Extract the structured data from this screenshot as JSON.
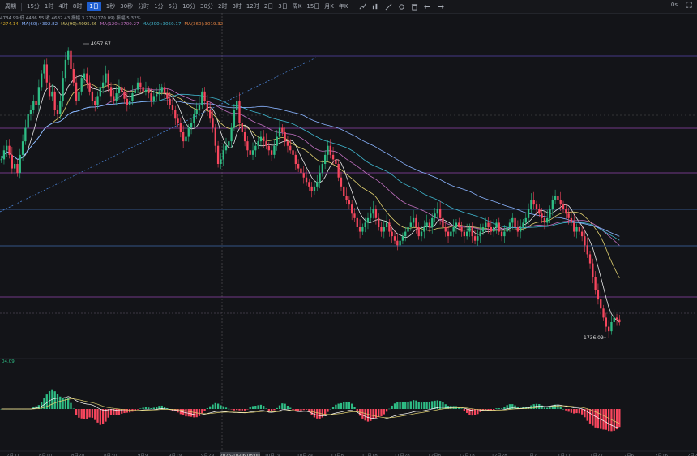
{
  "toolbar": {
    "period_label": "周期",
    "intervals": [
      "15分",
      "1时",
      "4时",
      "8时",
      "1日",
      "1秒",
      "30秒",
      "分时",
      "1分",
      "5分",
      "10分",
      "30分",
      "2时",
      "3时",
      "12时",
      "2日",
      "3日",
      "周K",
      "15日",
      "月K",
      "年K"
    ],
    "active_interval": "1日",
    "right": {
      "timer": "0s"
    }
  },
  "info": {
    "line1": "4734.99  低 4486.55  收 4682.43  振幅 3.77%(170.09)  振幅 5.32%",
    "ma": [
      {
        "label": "4274.14",
        "color": "#c9a227"
      },
      {
        "label": "MA(60):4392.82",
        "color": "#8ab4ff"
      },
      {
        "label": "MA(90):4095.66",
        "color": "#e0d070"
      },
      {
        "label": "MA(120):3700.27",
        "color": "#c070c0"
      },
      {
        "label": "MA(200):3050.17",
        "color": "#40b8d0"
      },
      {
        "label": "MA(360):3019.32",
        "color": "#e08040"
      }
    ]
  },
  "macd": {
    "label": "04.09"
  },
  "annotations": {
    "high": "4957.67",
    "low": "1736.02"
  },
  "colors": {
    "up": "#2ebd85",
    "down": "#f6465d",
    "bg": "#131418"
  },
  "chart_data": {
    "type": "candlestick",
    "ylim": [
      1600,
      5100
    ],
    "dates": [
      "7月31",
      "8月10",
      "8月20",
      "8月30",
      "9月9",
      "9月19",
      "9月29",
      "2025-10-06 08:00",
      "10月19",
      "10月29",
      "11月8",
      "11月18",
      "11月28",
      "12月8",
      "12月18",
      "12月28",
      "1月7",
      "1月17",
      "1月27",
      "2月6",
      "2月16",
      "2月26"
    ],
    "x_ticks": [
      "7月31",
      "8月10",
      "8月20",
      "8月30",
      "9月9",
      "9月19",
      "9月29",
      "2025-10-06 08:00",
      "10月19",
      "10月29",
      "11月8",
      "11月18",
      "11月28",
      "12月8",
      "12月18",
      "12月28",
      "1月7",
      "1月17",
      "1月27",
      "2月6",
      "2月16",
      "2月26"
    ],
    "close_series": [
      3750,
      3850,
      3900,
      3800,
      3650,
      3700,
      3600,
      3800,
      3950,
      4100,
      4250,
      4300,
      4400,
      4350,
      4550,
      4700,
      4800,
      4600,
      4450,
      4500,
      4300,
      4250,
      4400,
      4650,
      4850,
      4950,
      4750,
      4600,
      4400,
      4500,
      4650,
      4700,
      4600,
      4500,
      4400,
      4350,
      4450,
      4550,
      4600,
      4700,
      4550,
      4450,
      4400,
      4480,
      4550,
      4500,
      4420,
      4350,
      4400,
      4480,
      4520,
      4600,
      4550,
      4500,
      4520,
      4480,
      4400,
      4450,
      4470,
      4500,
      4550,
      4480,
      4420,
      4350,
      4300,
      4200,
      4150,
      4050,
      3950,
      4000,
      4100,
      4150,
      4250,
      4300,
      4350,
      4500,
      4400,
      4300,
      4200,
      4100,
      3900,
      3700,
      3750,
      3850,
      3900,
      3950,
      4100,
      4300,
      4400,
      4150,
      4050,
      3950,
      3850,
      3800,
      3850,
      3900,
      3950,
      4000,
      3950,
      3900,
      3850,
      3800,
      3900,
      4000,
      4100,
      4050,
      3950,
      3900,
      3850,
      3800,
      3700,
      3650,
      3600,
      3550,
      3500,
      3450,
      3400,
      3450,
      3500,
      3600,
      3700,
      3800,
      3900,
      3800,
      3750,
      3700,
      3550,
      3450,
      3350,
      3300,
      3250,
      3150,
      3100,
      3000,
      2950,
      3000,
      3050,
      3100,
      3150,
      3200,
      3100,
      3000,
      2950,
      3000,
      3050,
      2950,
      2900,
      2850,
      2800,
      2850,
      2900,
      2950,
      3000,
      3050,
      3100,
      3000,
      2900,
      2950,
      3000,
      3050,
      3000,
      3100,
      3150,
      3200,
      3100,
      3000,
      2950,
      2900,
      2950,
      3000,
      3050,
      3000,
      2950,
      2900,
      2950,
      3000,
      2900,
      2850,
      2900,
      2950,
      3000,
      3050,
      3000,
      2950,
      3000,
      3050,
      2950,
      2900,
      2950,
      3000,
      3050,
      3100,
      3000,
      2950,
      3000,
      3050,
      3100,
      3200,
      3300,
      3250,
      3200,
      3150,
      3100,
      3050,
      3100,
      3200,
      3300,
      3350,
      3300,
      3250,
      3200,
      3150,
      3100,
      3050,
      2950,
      3000,
      2950,
      2900,
      2800,
      2700,
      2600,
      2450,
      2300,
      2200,
      2100,
      2000,
      1900,
      1850,
      1950,
      2000,
      1980,
      1950
    ]
  }
}
